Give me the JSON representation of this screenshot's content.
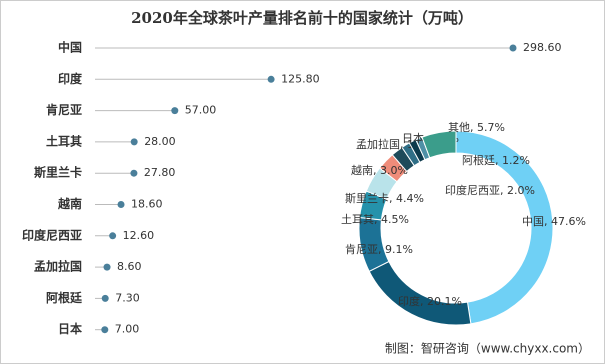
{
  "title": "2020年全球茶叶产量排名前十的国家统计（万吨）",
  "source": "制图：智研咨询（www.chyxx.com）",
  "chart_data": [
    {
      "type": "lollipop",
      "categories": [
        "中国",
        "印度",
        "肯尼亚",
        "土耳其",
        "斯里兰卡",
        "越南",
        "印度尼西亚",
        "孟加拉国",
        "阿根廷",
        "日本"
      ],
      "values": [
        298.6,
        125.8,
        57,
        28,
        27.8,
        18.6,
        12.6,
        8.6,
        7.3,
        7
      ],
      "value_labels": [
        "298.60",
        "125.80",
        "57.00",
        "28.00",
        "27.80",
        "18.60",
        "12.60",
        "8.60",
        "7.30",
        "7.00"
      ],
      "color": "#4a7f9a"
    },
    {
      "type": "donut",
      "values": [
        47.6,
        20.1,
        9.1,
        4.5,
        4.4,
        3.0,
        2.0,
        1.4,
        1.2,
        1.1,
        5.7
      ],
      "value_labels": [
        "中国, 47.6%",
        "印度, 20.1%",
        "肯尼亚, 9.1%",
        "土耳其, 4.5%",
        "斯里兰卡, 4.4%",
        "越南, 3.0%",
        "印度尼西亚, 2.0%",
        "孟加拉国, 1.4%",
        "阿根廷, 1.2%",
        "日本, 1.1%",
        "其他, 5.7%"
      ],
      "colors": [
        "#6fd0f5",
        "#0f5877",
        "#1c7296",
        "#2592ab",
        "#b9e3ea",
        "#ef8c7a",
        "#1e4a5a",
        "#2f6e86",
        "#0c3a4c",
        "#4f90a6",
        "#3b9d8b"
      ]
    }
  ]
}
